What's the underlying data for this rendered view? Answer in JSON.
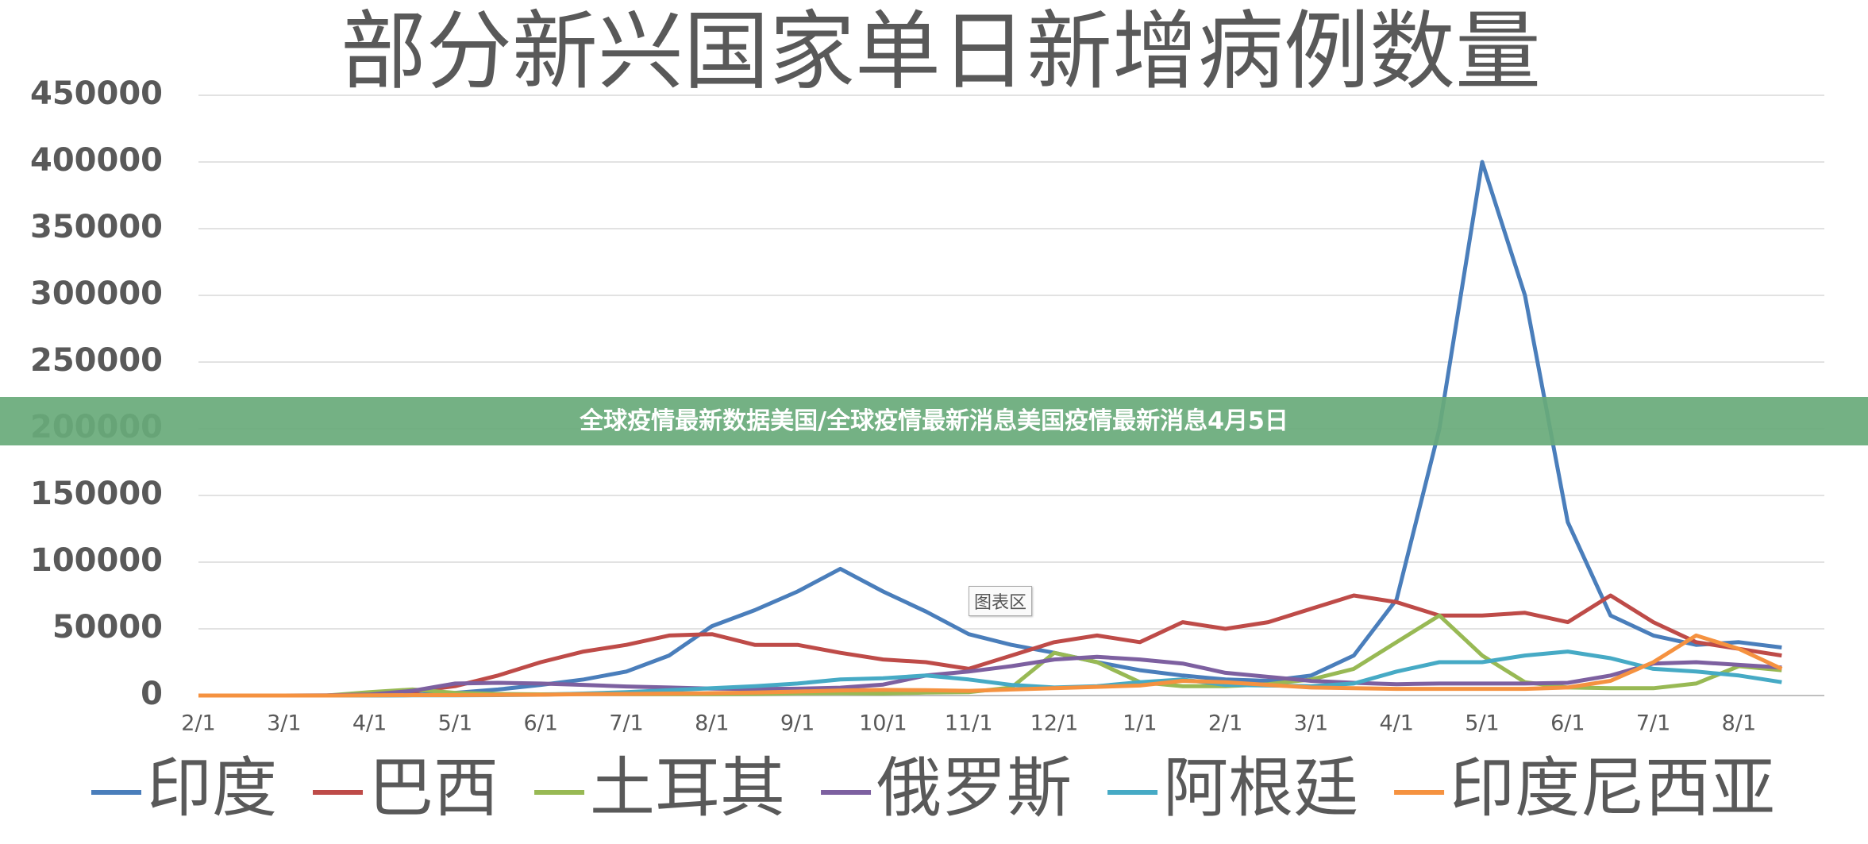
{
  "chart_data": {
    "type": "line",
    "title": "部分新兴国家单日新增病例数量",
    "categories": [
      "2/1",
      null,
      "3/1",
      null,
      "4/1",
      null,
      "5/1",
      null,
      "6/1",
      null,
      "7/1",
      null,
      "8/1",
      null,
      "9/1",
      null,
      "10/1",
      null,
      "11/1",
      null,
      "12/1",
      null,
      "1/1",
      null,
      "2/1",
      null,
      "3/1",
      null,
      "4/1",
      null,
      "5/1",
      null,
      "6/1",
      null,
      "7/1",
      null,
      "8/1",
      null
    ],
    "series": [
      {
        "name": "印度",
        "color": "#4a7ebb",
        "values": [
          0,
          0,
          0,
          0,
          0,
          500,
          2000,
          4500,
          8000,
          12000,
          18000,
          30000,
          52000,
          64000,
          78000,
          95000,
          78000,
          63000,
          46000,
          38000,
          32000,
          25000,
          19000,
          15000,
          12000,
          11000,
          15000,
          30000,
          72000,
          200000,
          400000,
          300000,
          130000,
          60000,
          45000,
          38000,
          40000,
          36000
        ]
      },
      {
        "name": "巴西",
        "color": "#be4b48",
        "values": [
          0,
          0,
          0,
          0,
          1000,
          3000,
          7000,
          15000,
          25000,
          33000,
          38000,
          45000,
          46000,
          38000,
          38000,
          32000,
          27000,
          25000,
          20000,
          30000,
          40000,
          45000,
          40000,
          55000,
          50000,
          55000,
          65000,
          75000,
          70000,
          60000,
          60000,
          62000,
          55000,
          75000,
          55000,
          40000,
          35000,
          30000
        ]
      },
      {
        "name": "土耳其",
        "color": "#98b954",
        "values": [
          0,
          0,
          0,
          0,
          2500,
          4500,
          2000,
          1200,
          900,
          1200,
          1100,
          1000,
          1000,
          1200,
          1600,
          1700,
          1500,
          2200,
          2500,
          6000,
          32000,
          25000,
          10000,
          7000,
          7000,
          8500,
          12000,
          20000,
          40000,
          60000,
          30000,
          10000,
          6000,
          5500,
          5500,
          9000,
          22000,
          19000
        ]
      },
      {
        "name": "俄罗斯",
        "color": "#7d60a0",
        "values": [
          0,
          0,
          0,
          100,
          800,
          3500,
          9000,
          9500,
          9000,
          8000,
          6800,
          6000,
          5200,
          4900,
          5100,
          5900,
          8200,
          15000,
          18000,
          22000,
          27000,
          29000,
          27000,
          24000,
          17000,
          14000,
          11000,
          9500,
          8500,
          9000,
          9000,
          9000,
          9500,
          15000,
          24000,
          25000,
          23000,
          21000
        ]
      },
      {
        "name": "阿根廷",
        "color": "#46aac5",
        "values": [
          0,
          0,
          0,
          0,
          0,
          100,
          150,
          300,
          600,
          1500,
          2500,
          4000,
          5500,
          7000,
          9000,
          12000,
          13000,
          15000,
          12000,
          8000,
          6000,
          7000,
          10000,
          12000,
          8000,
          7500,
          7000,
          9000,
          18000,
          25000,
          25000,
          30000,
          33000,
          28000,
          20000,
          18000,
          15000,
          10000
        ]
      },
      {
        "name": "印度尼西亚",
        "color": "#f59240",
        "values": [
          0,
          0,
          0,
          0,
          100,
          300,
          300,
          500,
          600,
          1000,
          1200,
          1500,
          1800,
          2200,
          3000,
          3800,
          4200,
          4000,
          3500,
          4500,
          5500,
          6500,
          7500,
          11000,
          10000,
          8000,
          6000,
          5500,
          5000,
          5000,
          5000,
          5000,
          6000,
          11000,
          25000,
          45000,
          35000,
          20000
        ]
      }
    ],
    "ylim": [
      0,
      450000
    ],
    "yticks": [
      0,
      50000,
      100000,
      150000,
      200000,
      250000,
      300000,
      350000,
      400000,
      450000
    ],
    "grid": true,
    "legend": "bottom"
  },
  "overlay": {
    "banner": "全球疫情最新数据美国/全球疫情最新消息美国疫情最新消息4月5日",
    "tooltip": "图表区"
  }
}
